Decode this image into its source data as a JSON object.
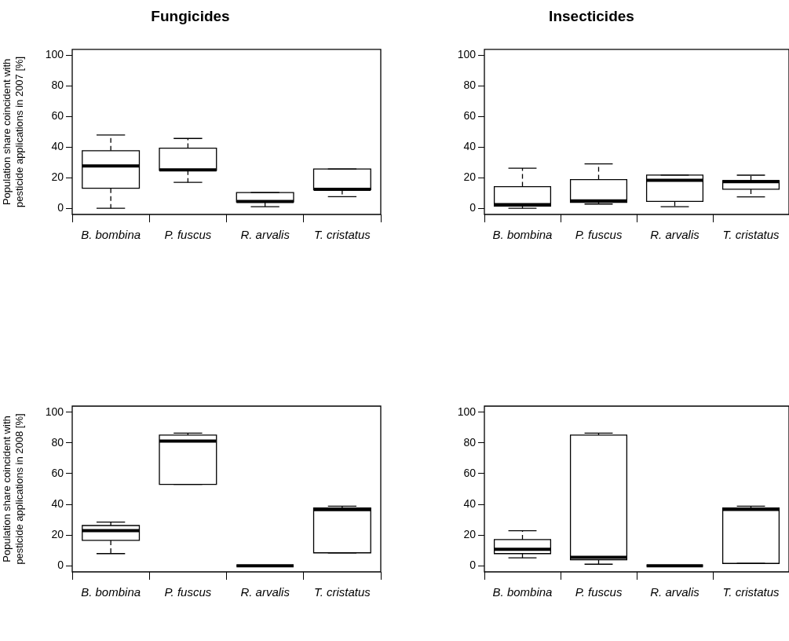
{
  "chart_data": [
    {
      "type": "box",
      "title": "Fungicides",
      "ylabel": "Population share coincident with pesticide applications in 2007 [%]",
      "categories": [
        "B. bombina",
        "P. fuscus",
        "R. arvalis",
        "T. cristatus"
      ],
      "ylim": [
        -4,
        104
      ],
      "yticks": [
        0,
        20,
        40,
        60,
        80,
        100
      ],
      "grid": false,
      "boxes": [
        {
          "low": 0,
          "q1": 13.1,
          "median": 27.7,
          "q3": 37.7,
          "high": 48
        },
        {
          "low": 17,
          "q1": 24.9,
          "median": 25.2,
          "q3": 39.4,
          "high": 45.7
        },
        {
          "low": 1.1,
          "q1": 4.2,
          "median": 4.5,
          "q3": 10.3,
          "high": 10.3
        },
        {
          "low": 7.6,
          "q1": 12.2,
          "median": 12.5,
          "q3": 25.7,
          "high": 25.7
        }
      ]
    },
    {
      "type": "box",
      "title": "Insecticides",
      "categories": [
        "B. bombina",
        "P. fuscus",
        "R. arvalis",
        "T. cristatus"
      ],
      "ylim": [
        -4,
        104
      ],
      "yticks": [
        0,
        20,
        40,
        60,
        80,
        100
      ],
      "grid": false,
      "boxes": [
        {
          "low": 0,
          "q1": 1.5,
          "median": 2.4,
          "q3": 14.2,
          "high": 26.3
        },
        {
          "low": 2.8,
          "q1": 3.9,
          "median": 4.9,
          "q3": 18.8,
          "high": 29.1
        },
        {
          "low": 1.1,
          "q1": 4.5,
          "median": 18.3,
          "q3": 21.8,
          "high": 21.8
        },
        {
          "low": 7.5,
          "q1": 12.5,
          "median": 17.4,
          "q3": 18.1,
          "high": 21.7
        }
      ]
    },
    {
      "type": "box",
      "ylabel": "Population share coincident with pesticide applications in 2008 [%]",
      "categories": [
        "B. bombina",
        "P. fuscus",
        "R. arvalis",
        "T. cristatus"
      ],
      "ylim": [
        -4,
        104
      ],
      "yticks": [
        0,
        20,
        40,
        60,
        80,
        100
      ],
      "grid": false,
      "boxes": [
        {
          "low": 7.9,
          "q1": 16.5,
          "median": 22.9,
          "q3": 26.2,
          "high": 28.4
        },
        {
          "low": 53,
          "q1": 53,
          "median": 81.2,
          "q3": 85.1,
          "high": 86.4
        },
        {
          "low": 0,
          "q1": 0,
          "median": 0,
          "q3": 0,
          "high": 0
        },
        {
          "low": 8.4,
          "q1": 8.4,
          "median": 36.6,
          "q3": 37.7,
          "high": 38.8
        }
      ]
    },
    {
      "type": "box",
      "categories": [
        "B. bombina",
        "P. fuscus",
        "R. arvalis",
        "T. cristatus"
      ],
      "ylim": [
        -4,
        104
      ],
      "yticks": [
        0,
        20,
        40,
        60,
        80,
        100
      ],
      "grid": false,
      "boxes": [
        {
          "low": 5.1,
          "q1": 7.9,
          "median": 10.7,
          "q3": 17,
          "high": 22.8
        },
        {
          "low": 1,
          "q1": 3.9,
          "median": 5.5,
          "q3": 85.1,
          "high": 86.4
        },
        {
          "low": 0,
          "q1": 0,
          "median": 0,
          "q3": 0,
          "high": 0
        },
        {
          "low": 1.5,
          "q1": 1.5,
          "median": 36.7,
          "q3": 37.7,
          "high": 38.8
        }
      ]
    }
  ]
}
